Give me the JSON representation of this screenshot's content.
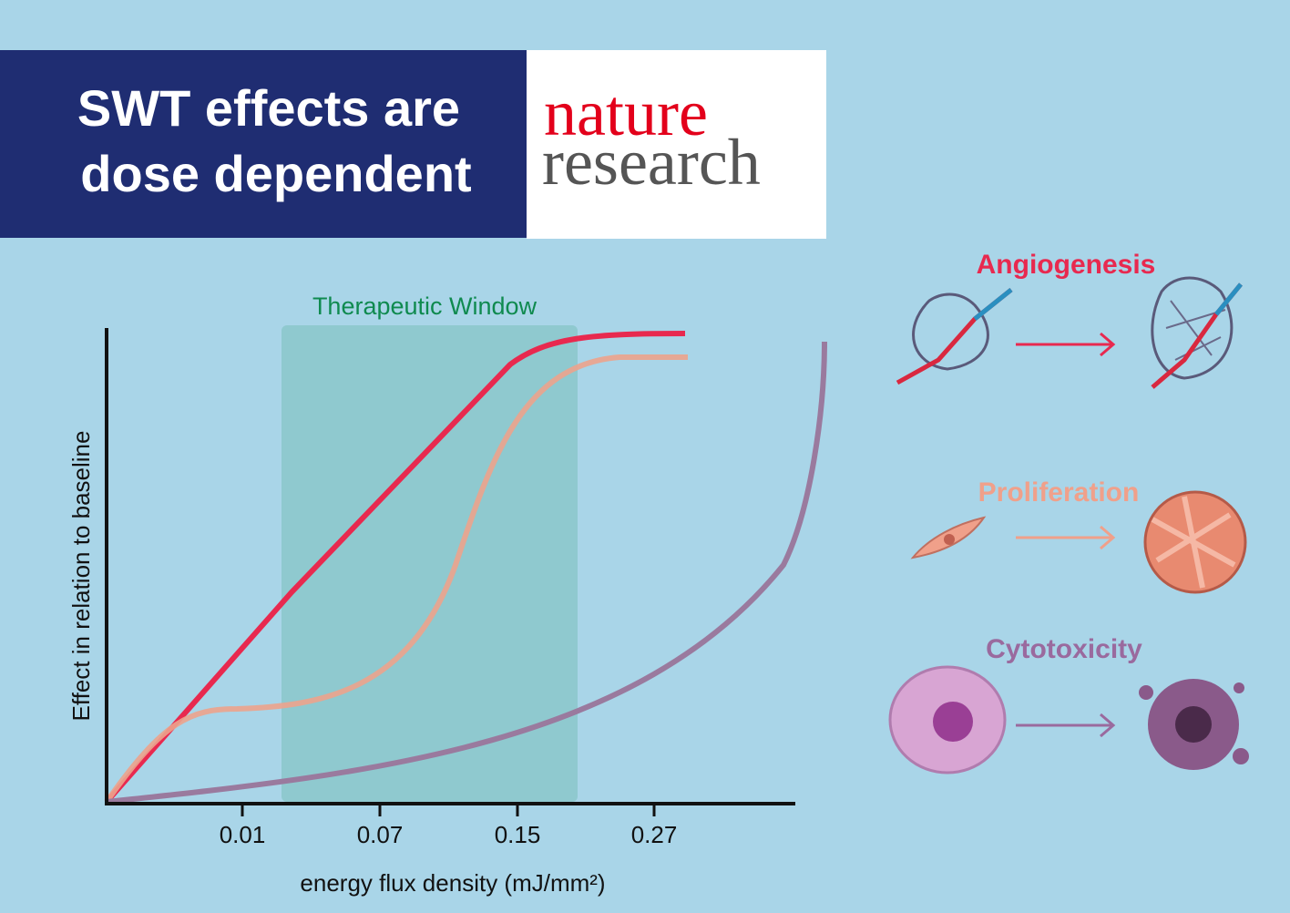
{
  "header": {
    "title_lines": [
      "SWT effects are",
      "dose dependent"
    ]
  },
  "logo": {
    "line1": "nature",
    "line2": "research"
  },
  "graph": {
    "window_label": "Therapeutic Window",
    "y_label": "Effect in relation to baseline",
    "x_ticks": [
      "0.01",
      "0.07",
      "0.15",
      "0.27"
    ],
    "x_label": "energy flux density (mJ/mm²)"
  },
  "effects": [
    {
      "label": "Angiogenesis"
    },
    {
      "label": "Proliferation"
    },
    {
      "label": "Cytotoxicity"
    }
  ]
}
